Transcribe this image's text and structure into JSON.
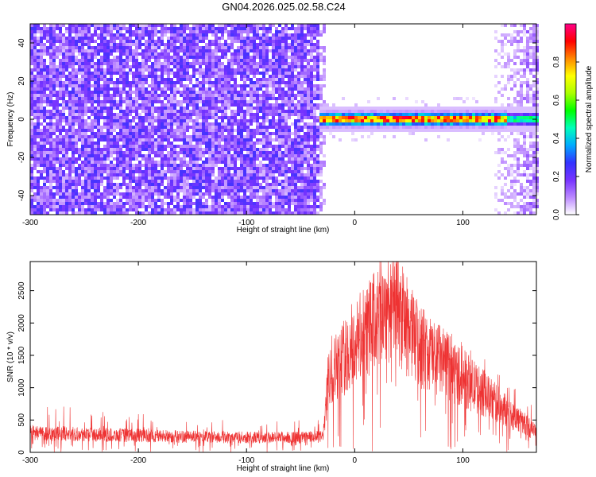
{
  "title": "GN04.2026.025.02.58.C24",
  "chart_data": [
    {
      "type": "heatmap",
      "xlabel": "Height of straight line (km)",
      "ylabel": "Frequency (Hz)",
      "xlim": [
        -300,
        168
      ],
      "ylim": [
        -50,
        50
      ],
      "x_ticks": [
        -300,
        -200,
        -100,
        0,
        100
      ],
      "y_ticks": [
        -40,
        -20,
        0,
        20,
        40
      ],
      "colorbar": {
        "label": "Normalized spectral amplitude",
        "range": [
          0,
          1
        ],
        "ticks": [
          0.0,
          0.2,
          0.4,
          0.6,
          0.8
        ],
        "colors": [
          "#ffffff",
          "#bb88ff",
          "#7733ff",
          "#3333ff",
          "#00aaff",
          "#00ffbb",
          "#00ff00",
          "#aaff00",
          "#ffff00",
          "#ff8800",
          "#ff0000",
          "#ff0088"
        ]
      },
      "regions": [
        {
          "x_range": [
            -300,
            -33
          ],
          "description": "broadband noise",
          "freq_range": [
            -50,
            50
          ],
          "amplitude_range": [
            0.05,
            0.25
          ]
        },
        {
          "x_range": [
            -33,
            168
          ],
          "description": "narrow band signal",
          "center_freq": 0,
          "half_width_hz": 3,
          "peak_amplitude": 0.95
        },
        {
          "x_range": [
            130,
            168
          ],
          "description": "noise near upper edge",
          "amplitude_range": [
            0.02,
            0.12
          ]
        }
      ],
      "grid": false
    },
    {
      "type": "line",
      "xlabel": "Height of straight line (km)",
      "ylabel": "SNR (10 * v/v)",
      "xlim": [
        -300,
        168
      ],
      "ylim": [
        0,
        2950
      ],
      "x_ticks": [
        -300,
        -200,
        -100,
        0,
        100
      ],
      "y_ticks": [
        0,
        500,
        1000,
        1500,
        2000,
        2500
      ],
      "series": [
        {
          "color": "#ee3333",
          "envelope_x": [
            -300,
            -290,
            -250,
            -200,
            -150,
            -100,
            -50,
            -30,
            -28,
            -25,
            -20,
            -10,
            0,
            10,
            20,
            30,
            35,
            40,
            50,
            60,
            80,
            100,
            120,
            140,
            160,
            168
          ],
          "envelope_mean": [
            320,
            300,
            280,
            260,
            240,
            230,
            230,
            240,
            400,
            1050,
            1300,
            1450,
            1650,
            1850,
            2050,
            2250,
            2350,
            2200,
            1900,
            1650,
            1400,
            1150,
            900,
            650,
            400,
            300
          ],
          "envelope_max": [
            700,
            800,
            650,
            600,
            550,
            520,
            520,
            520,
            1500,
            2250,
            2150,
            2650,
            2400,
            2600,
            2750,
            2850,
            2950,
            2800,
            2500,
            2200,
            2000,
            1700,
            1450,
            1150,
            850,
            650
          ],
          "noise_pct": 0.25
        }
      ],
      "grid": false
    }
  ]
}
